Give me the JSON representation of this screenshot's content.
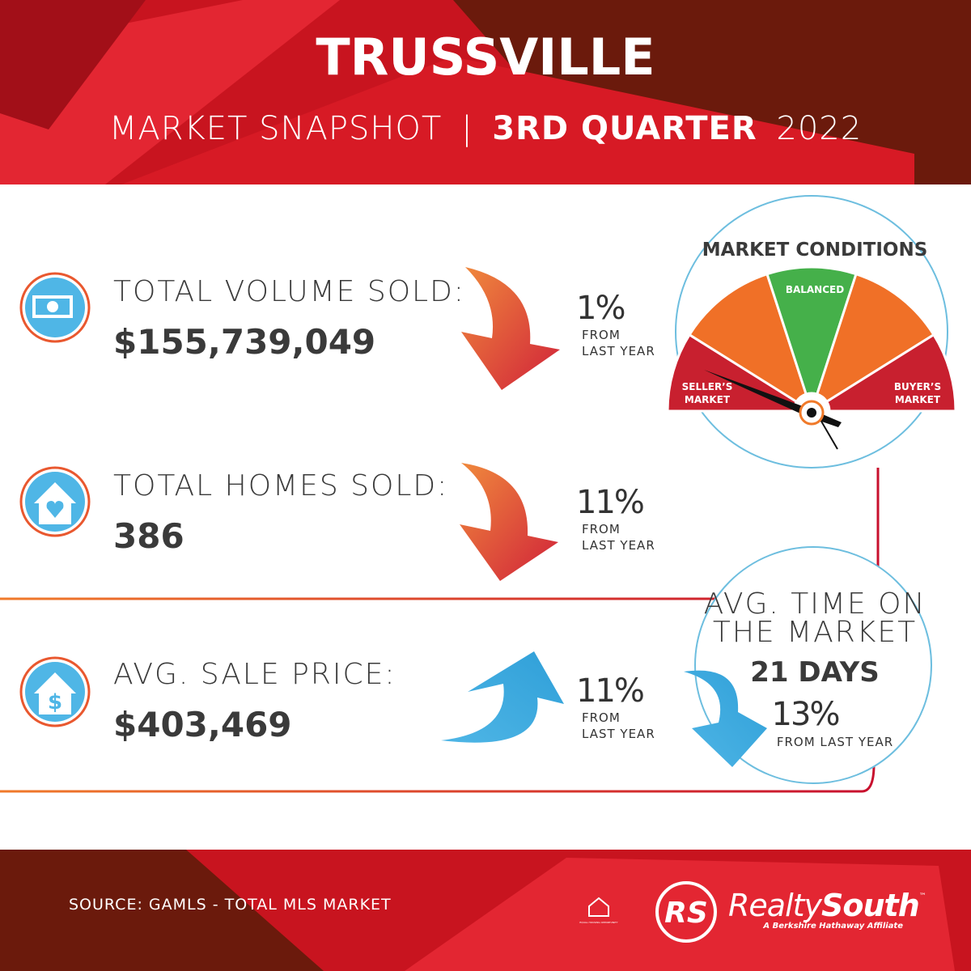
{
  "header": {
    "title": "TRUSSVILLE",
    "subtitle": "MARKET SNAPSHOT",
    "separator": "|",
    "quarter": "3RD QUARTER",
    "year": "2022"
  },
  "stats": [
    {
      "label": "TOTAL VOLUME SOLD:",
      "value": "$155,739,049",
      "change": "1%",
      "note_lines": [
        "FROM",
        "LAST YEAR"
      ]
    },
    {
      "label": "TOTAL HOMES SOLD:",
      "value": "386",
      "change": "11%",
      "note_lines": [
        "FROM",
        "LAST YEAR"
      ]
    },
    {
      "label": "AVG. SALE PRICE:",
      "value": "$403,469",
      "change": "11%",
      "note_lines": [
        "FROM",
        "LAST YEAR"
      ]
    }
  ],
  "market_conditions": {
    "title": "MARKET CONDITIONS",
    "sellers_lines": [
      "SELLER’S",
      "MARKET"
    ],
    "balanced": "BALANCED",
    "buyers_lines": [
      "BUYER’S",
      "MARKET"
    ]
  },
  "time_on_market": {
    "title_lines": [
      "AVG. TIME ON",
      "THE MARKET"
    ],
    "value": "21 DAYS",
    "change": "13%",
    "note": "FROM LAST YEAR"
  },
  "footer": {
    "source": "SOURCE: GAMLS - TOTAL MLS MARKET",
    "logo_mark": "RS",
    "logo_realty": "Realty",
    "logo_south": "South",
    "logo_tm": "™",
    "tagline": "A Berkshire Hathaway Affiliate",
    "eho": "EQUAL HOUSING OPPORTUNITY"
  }
}
